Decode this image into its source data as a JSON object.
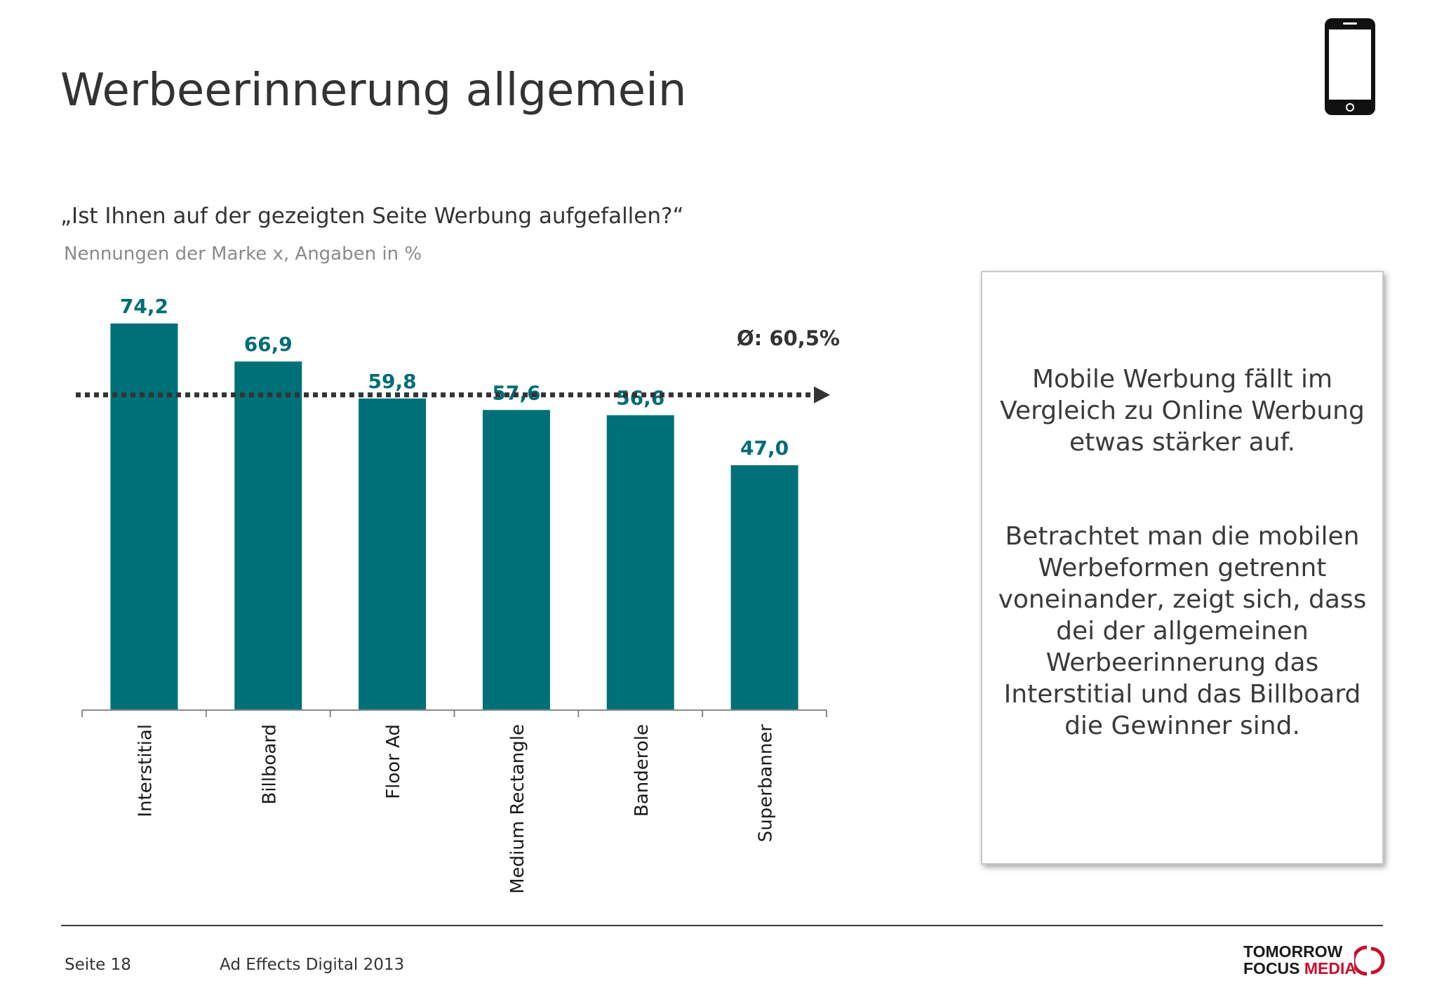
{
  "title": "Werbeerinnerung allgemein",
  "question": "„Ist Ihnen auf der gezeigten Seite Werbung aufgefallen?“",
  "subnote": "Nennungen der Marke x, Angaben in %",
  "device_icon": "smartphone-icon",
  "chart_data": {
    "type": "bar",
    "categories": [
      "Interstitial",
      "Billboard",
      "Floor Ad",
      "Medium Rectangle",
      "Banderole",
      "Superbanner"
    ],
    "values": [
      74.2,
      66.9,
      59.8,
      57.6,
      56.6,
      47.0
    ],
    "value_labels": [
      "74,2",
      "66,9",
      "59,8",
      "57,6",
      "56,6",
      "47,0"
    ],
    "ylim": [
      0,
      74.2
    ],
    "average": 60.5,
    "average_label": "Ø: 60,5%",
    "bar_color": "#007078",
    "label_color": "#006d77",
    "average_line_color": "#333333",
    "grid": false
  },
  "infobox": {
    "paragraph1": "Mobile Werbung fällt im Vergleich zu Online Werbung etwas stärker auf.",
    "paragraph2": "Betrachtet man die mobilen Werbeformen getrennt voneinander, zeigt sich, dass dei der allgemeinen Werbeerinnerung das Interstitial und das Billboard die Gewinner sind."
  },
  "footer": {
    "page": "Seite 18",
    "source": "Ad Effects Digital 2013",
    "logo_line1": "TOMORROW",
    "logo_line2a": "FOCUS ",
    "logo_line2b": "MEDIA",
    "logo_accent_color": "#c8102e"
  }
}
